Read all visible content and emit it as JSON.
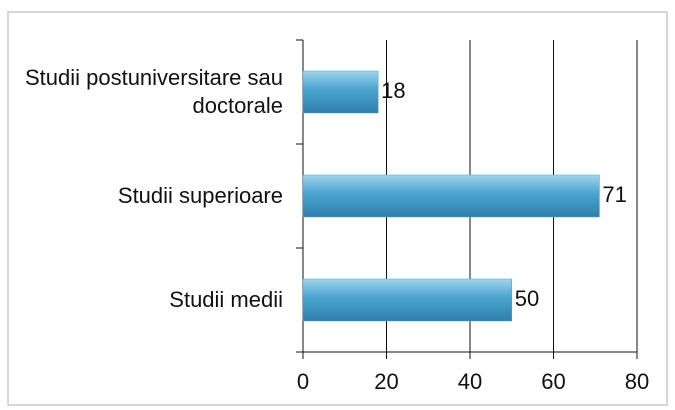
{
  "chart_data": {
    "type": "bar",
    "orientation": "horizontal",
    "categories": [
      "Studii postuniversitare sau doctorale",
      "Studii superioare",
      "Studii medii"
    ],
    "values": [
      18,
      71,
      50
    ],
    "color": "#4aa3cf",
    "xlim": [
      0,
      80
    ],
    "xticks": [
      0,
      20,
      40,
      60,
      80
    ],
    "grid": true
  }
}
